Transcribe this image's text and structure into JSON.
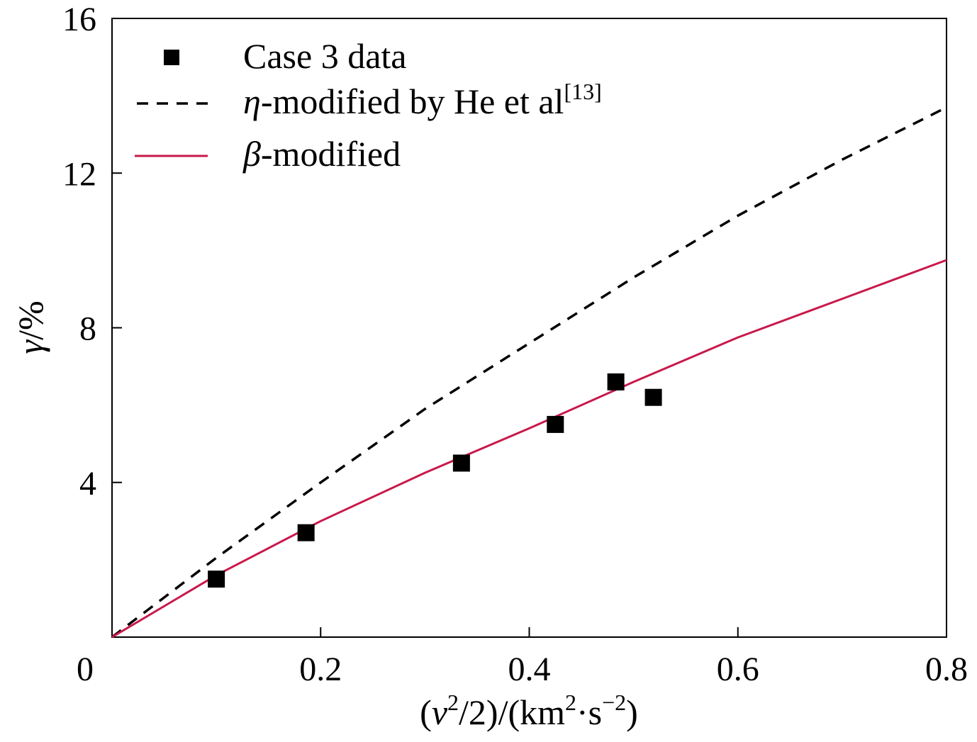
{
  "chart_data": {
    "type": "line",
    "xlim": [
      0,
      0.8
    ],
    "ylim": [
      0,
      16
    ],
    "x_ticks": [
      "0",
      "0.2",
      "0.4",
      "0.6",
      "0.8"
    ],
    "y_ticks": [
      "4",
      "8",
      "12",
      "16"
    ],
    "xlabel": {
      "open": "(",
      "v": "v",
      "v_exp": "2",
      "mid": "/2)/(km",
      "km_exp": "2",
      "dot_s": "·s",
      "s_exp": "−2",
      "close": ")"
    },
    "ylabel": {
      "gamma": "γ",
      "unit": "/%"
    },
    "legend": {
      "position": "top-left",
      "case3": "Case 3 data",
      "eta_symbol": "η",
      "eta_text": "-modified by He et al",
      "eta_ref": "[13]",
      "beta_symbol": "β",
      "beta_text": "-modified"
    },
    "series": [
      {
        "name": "Case 3 data",
        "style": "square-marker",
        "color": "#000000",
        "x": [
          0.1,
          0.186,
          0.335,
          0.425,
          0.483,
          0.519
        ],
        "y": [
          1.5,
          2.7,
          4.5,
          5.5,
          6.6,
          6.2
        ]
      },
      {
        "name": "η-modified by He et al[13]",
        "style": "dashed",
        "color": "#000000",
        "x": [
          0.0,
          0.1,
          0.2,
          0.3,
          0.4,
          0.5,
          0.6,
          0.7,
          0.8
        ],
        "y": [
          0.0,
          2.05,
          4.0,
          5.9,
          7.6,
          9.3,
          10.9,
          12.35,
          13.7
        ]
      },
      {
        "name": "β-modified",
        "style": "solid",
        "color": "#c8194b",
        "x": [
          0.0,
          0.1,
          0.2,
          0.3,
          0.4,
          0.5,
          0.6,
          0.7,
          0.8
        ],
        "y": [
          0.0,
          1.6,
          3.0,
          4.25,
          5.4,
          6.6,
          7.75,
          8.75,
          9.75
        ]
      }
    ]
  }
}
